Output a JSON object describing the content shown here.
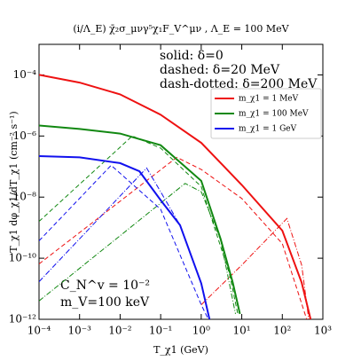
{
  "chart_data": {
    "type": "line",
    "title": "(i/Λ_E) χ̄₂σ_μνγ⁵χ₁F_V^μν , Λ_E = 100 MeV",
    "x_label": "T_χ1 (GeV)",
    "y_label": "T_χ1 dφ_χ1/dT_χ1 (cm⁻² s⁻¹)",
    "log_x": true,
    "log_y": true,
    "xlim": [
      0.0001,
      1000
    ],
    "ylim": [
      1e-12,
      0.001
    ],
    "xticks": [
      {
        "value": 0.0001,
        "label": "10⁻⁴"
      },
      {
        "value": 0.001,
        "label": "10⁻³"
      },
      {
        "value": 0.01,
        "label": "10⁻²"
      },
      {
        "value": 0.1,
        "label": "10⁻¹"
      },
      {
        "value": 1,
        "label": "10⁰"
      },
      {
        "value": 10,
        "label": "10¹"
      },
      {
        "value": 100,
        "label": "10²"
      },
      {
        "value": 1000,
        "label": "10³"
      }
    ],
    "yticks": [
      {
        "value": 1e-12,
        "label": "10⁻¹²"
      },
      {
        "value": 1e-10,
        "label": "10⁻¹⁰"
      },
      {
        "value": 1e-08,
        "label": "10⁻⁸"
      },
      {
        "value": 1e-06,
        "label": "10⁻⁶"
      },
      {
        "value": 0.0001,
        "label": "10⁻⁴"
      }
    ],
    "annotations": [
      "solid: δ=0",
      "dashed: δ=20 MeV",
      "dash-dotted: δ=200 MeV",
      "C_N^v = 10⁻²",
      "m_V=100 keV"
    ],
    "legend_position": "upper right",
    "series": [
      {
        "name": "m_χ1 = 1  MeV",
        "color": "#ee1111",
        "curves": [
          {
            "x": [
              0.0001,
              0.001,
              0.01,
              0.1,
              1,
              10,
              100,
              300,
              500
            ],
            "values": [
              0.0001,
              5.6e-05,
              2.3e-05,
              5e-06,
              6e-07,
              2.5e-08,
              8e-10,
              1.6e-11,
              1e-12
            ]
          },
          {
            "x": [
              0.0001,
              0.25,
              1,
              10,
              100,
              400
            ],
            "values": [
              6.5e-11,
              2e-07,
              8e-08,
              9e-09,
              3e-10,
              1e-12
            ]
          },
          {
            "x": [
              1,
              10,
              130,
              300,
              450
            ],
            "values": [
              3e-12,
              6e-11,
              2e-09,
              6e-11,
              1e-12
            ]
          }
        ]
      },
      {
        "name": "m_χ1 = 100  MeV",
        "color": "#118811",
        "curves": [
          {
            "x": [
              0.0001,
              0.001,
              0.01,
              0.1,
              1,
              3,
              6,
              9
            ],
            "values": [
              2.2e-06,
              1.7e-06,
              1.2e-06,
              5e-07,
              3.4e-08,
              4.3e-10,
              1.6e-11,
              1.5e-12
            ]
          },
          {
            "x": [
              0.0001,
              0.02,
              0.1,
              1,
              5,
              8
            ],
            "values": [
              1.6e-09,
              1e-06,
              4e-07,
              2.2e-08,
              3e-11,
              1.5e-12
            ]
          },
          {
            "x": [
              0.0001,
              0.4,
              1,
              3,
              7
            ],
            "values": [
              4e-12,
              2.8e-08,
              1.5e-08,
              4e-10,
              1.5e-12
            ]
          }
        ]
      },
      {
        "name": "m_χ1 = 1  GeV",
        "color": "#1111ee",
        "curves": [
          {
            "x": [
              0.0001,
              0.001,
              0.01,
              0.03,
              0.1,
              0.3,
              1,
              1.6
            ],
            "values": [
              2.2e-07,
              2e-07,
              1.3e-07,
              7e-08,
              8e-09,
              1.2e-09,
              1.5e-11,
              1e-12
            ]
          },
          {
            "x": [
              0.0001,
              0.006,
              0.1,
              1,
              1.5
            ],
            "values": [
              3.7e-10,
              1.1e-07,
              4e-09,
              3e-12,
              1e-12
            ]
          },
          {
            "x": [
              0.0001,
              0.045,
              0.1,
              0.3,
              1
            ],
            "values": [
              1.7e-11,
              9e-08,
              1.5e-08,
              1.2e-09,
              1.5e-11
            ]
          }
        ]
      }
    ]
  }
}
